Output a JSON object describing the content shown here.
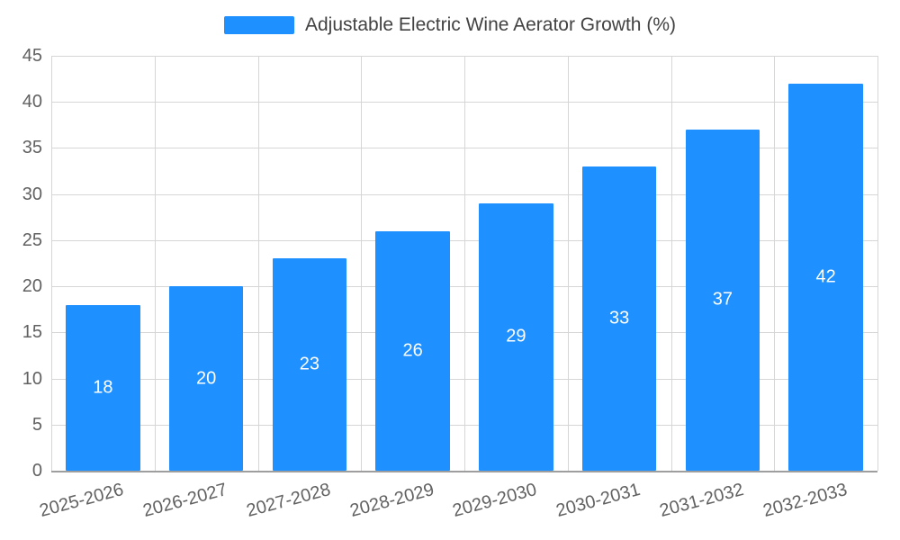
{
  "chart_data": {
    "type": "bar",
    "title": "Adjustable Electric Wine Aerator Growth (%)",
    "categories": [
      "2025-2026",
      "2026-2027",
      "2027-2028",
      "2028-2029",
      "2029-2030",
      "2030-2031",
      "2031-2032",
      "2032-2033"
    ],
    "values": [
      18,
      20,
      23,
      26,
      29,
      33,
      37,
      42
    ],
    "xlabel": "",
    "ylabel": "",
    "ylim": [
      0,
      45
    ],
    "ytick_step": 5,
    "grid": true,
    "legend_position": "top-center",
    "bar_color": "#1E90FF",
    "value_label_color": "#FFFFFF",
    "tick_label_color": "#616161",
    "grid_color": "#D6D6D6"
  }
}
